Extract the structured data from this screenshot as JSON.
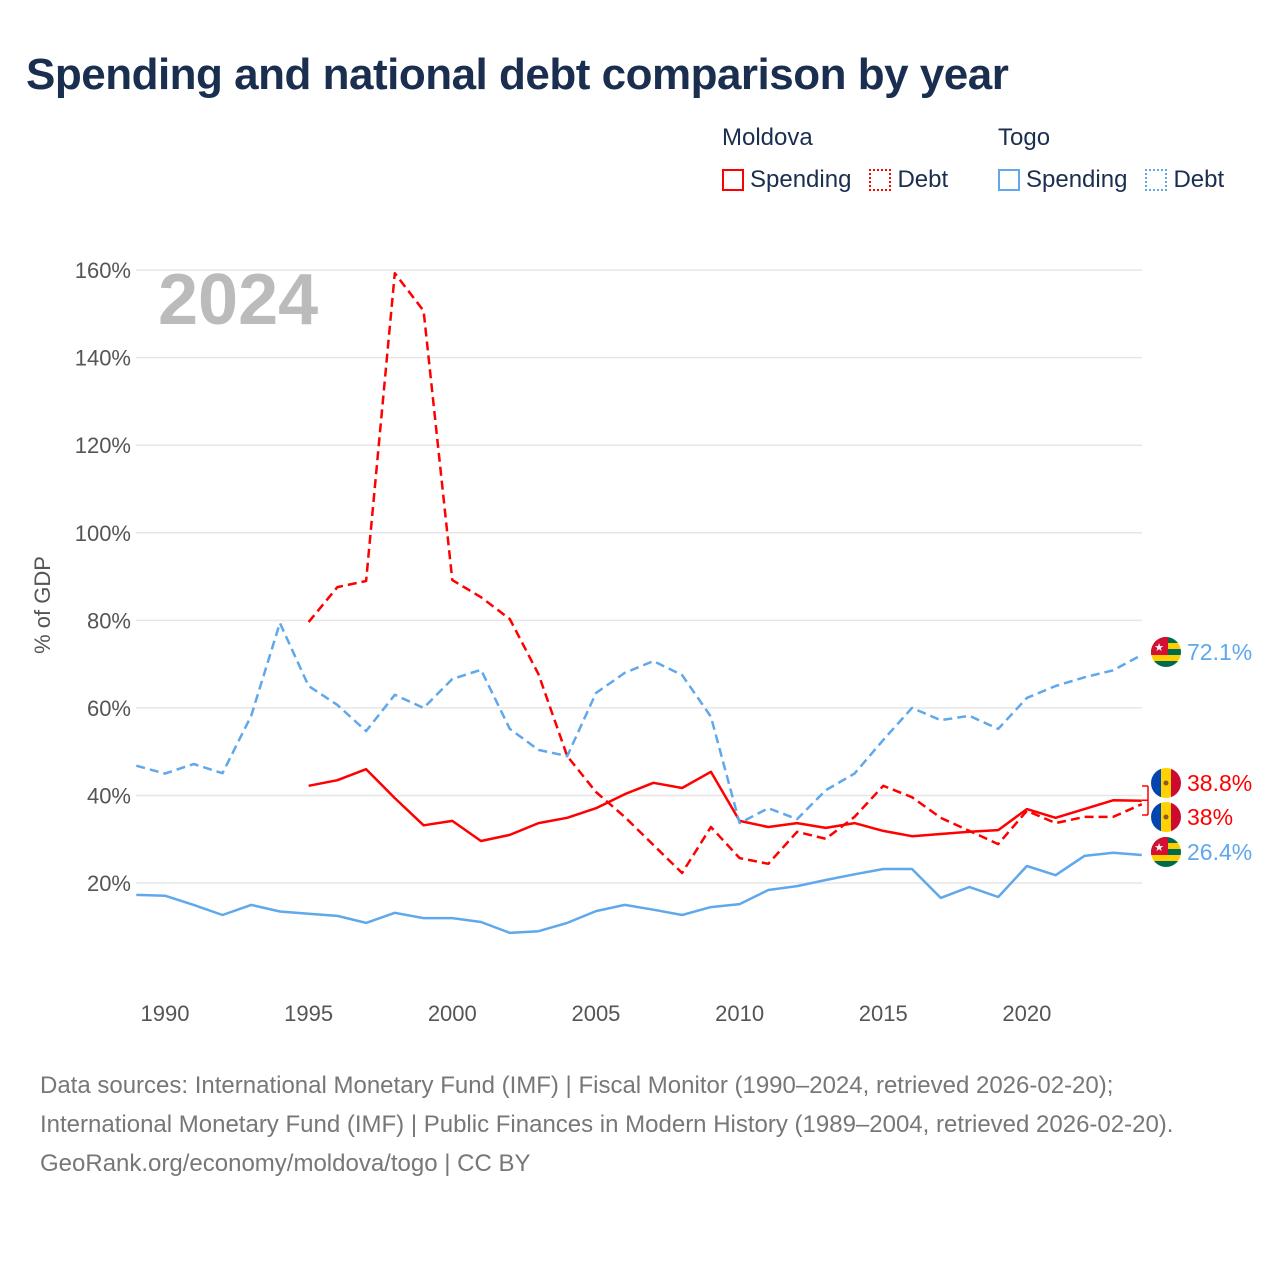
{
  "title": "Spending and national debt comparison by year",
  "legend": {
    "groups": [
      {
        "country": "Moldova",
        "color": "#ff0000",
        "items": [
          "Spending",
          "Debt"
        ]
      },
      {
        "country": "Togo",
        "color": "#5fa8ec",
        "items": [
          "Spending",
          "Debt"
        ]
      }
    ]
  },
  "year_label": "2024",
  "footer": {
    "sources": "Data sources: International Monetary Fund (IMF) | Fiscal Monitor (1990–2024, retrieved 2026-02-20); International Monetary Fund (IMF) | Public Finances in Modern History (1989–2004, retrieved 2026-02-20).",
    "credit": "GeoRank.org/economy/moldova/togo | CC BY"
  },
  "chart_data": {
    "type": "line",
    "title": "Spending and national debt comparison by year",
    "xlabel": "",
    "ylabel": "% of GDP",
    "xlim": [
      1989,
      2024
    ],
    "ylim": [
      0,
      165
    ],
    "xticks": [
      1990,
      1995,
      2000,
      2005,
      2010,
      2015,
      2020
    ],
    "yticks": [
      20,
      40,
      60,
      80,
      100,
      120,
      140,
      160
    ],
    "ytick_labels": [
      "20%",
      "40%",
      "60%",
      "80%",
      "100%",
      "120%",
      "140%",
      "160%"
    ],
    "grid": true,
    "legend_position": "top-right",
    "series": [
      {
        "name": "Moldova Spending",
        "country": "Moldova",
        "color": "#ff0000",
        "dash": false,
        "start": 1995,
        "end_label": "38.8%",
        "values": [
          42.2,
          43.5,
          46,
          39.4,
          33.2,
          34.2,
          29.6,
          31,
          33.7,
          34.9,
          37.1,
          40.3,
          42.9,
          41.7,
          45.4,
          34.2,
          32.8,
          33.7,
          32.6,
          33.7,
          31.9,
          30.7,
          31.2,
          31.7,
          32.1,
          36.9,
          34.9,
          36.9,
          38.9,
          38.8
        ]
      },
      {
        "name": "Moldova Debt",
        "country": "Moldova",
        "color": "#ff0000",
        "dash": true,
        "start": 1995,
        "end_label": "38%",
        "values": [
          79.6,
          87.6,
          89,
          159.3,
          150.7,
          89.2,
          85.3,
          80.3,
          67.7,
          49,
          40.8,
          35.1,
          28.7,
          22.3,
          32.8,
          25.7,
          24.4,
          31.7,
          30.1,
          35.1,
          42.2,
          39.6,
          34.9,
          31.9,
          28.9,
          36.5,
          33.7,
          35.1,
          35.1,
          38
        ]
      },
      {
        "name": "Togo Spending",
        "country": "Togo",
        "color": "#5fa8ec",
        "dash": false,
        "start": 1989,
        "end_label": "26.4%",
        "values": [
          17.3,
          17.1,
          15,
          12.7,
          15,
          13.5,
          13,
          12.5,
          10.9,
          13.2,
          12,
          12,
          11.1,
          8.6,
          9,
          10.9,
          13.6,
          15,
          13.9,
          12.7,
          14.5,
          15.2,
          18.4,
          19.3,
          20.7,
          22,
          23.2,
          23.2,
          16.6,
          19.1,
          16.8,
          23.9,
          21.8,
          26.2,
          26.9,
          26.4
        ]
      },
      {
        "name": "Togo Debt",
        "country": "Togo",
        "color": "#5fa8ec",
        "dash": true,
        "start": 1989,
        "end_label": "72.1%",
        "values": [
          46.8,
          45,
          47.2,
          45.1,
          58.2,
          79.4,
          65,
          60.7,
          54.7,
          63,
          60,
          66.6,
          68.7,
          55.2,
          50.4,
          49,
          63.4,
          68,
          70.7,
          67.5,
          58,
          33.7,
          37.1,
          34.6,
          41.2,
          45,
          52.7,
          60,
          57.2,
          58.2,
          55.2,
          62.3,
          65,
          67,
          68.6,
          72.1
        ]
      }
    ]
  }
}
